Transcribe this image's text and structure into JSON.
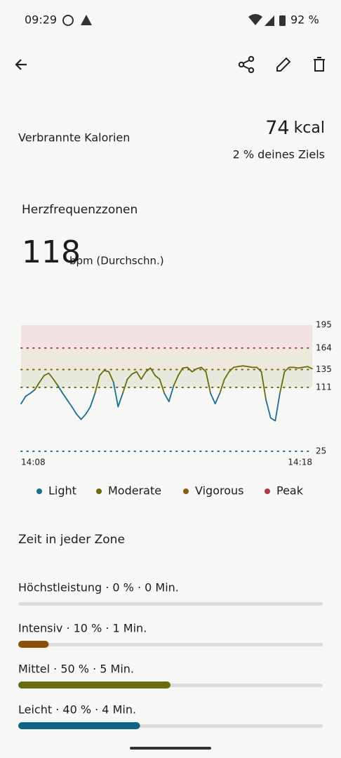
{
  "status_bar": {
    "time": "09:29",
    "battery": "92 %"
  },
  "calories": {
    "label": "Verbrannte Kalorien",
    "value": "74",
    "unit": "kcal",
    "goal": "2 % deines Ziels"
  },
  "heart_rate": {
    "title": "Herzfrequenzzonen",
    "average": 118,
    "unit": "bpm (Durchschn.)"
  },
  "chart_data": {
    "type": "line",
    "values": [
      89,
      99,
      103,
      108,
      118,
      127,
      130,
      122,
      113,
      103,
      94,
      85,
      75,
      68,
      75,
      85,
      103,
      127,
      134,
      132,
      118,
      85,
      103,
      122,
      129,
      132,
      122,
      132,
      137,
      127,
      122,
      103,
      92,
      113,
      127,
      137,
      138,
      132,
      136,
      138,
      132,
      103,
      89,
      103,
      122,
      132,
      138,
      139,
      140,
      139,
      138,
      138,
      132,
      94,
      70,
      66,
      103,
      132,
      138,
      138,
      137,
      138,
      139,
      136
    ],
    "x_labels": [
      "14:08",
      "14:18"
    ],
    "ylim": [
      25,
      195
    ],
    "yticks": [
      25,
      111,
      135,
      164,
      195
    ],
    "tick_line_colors": [
      "#1a6e91",
      "#6b6a10",
      "#8a5a10",
      "#b03a4a",
      null
    ],
    "band_colors": [
      null,
      "#e7e9dc",
      "#ede9dd",
      "#f1e3e3"
    ],
    "line_colors": [
      "#1a6e91",
      "#6b6a10"
    ],
    "legend": [
      {
        "name": "Light",
        "color": "#1a6e91"
      },
      {
        "name": "Moderate",
        "color": "#6b6a10"
      },
      {
        "name": "Vigorous",
        "color": "#8a5a10"
      },
      {
        "name": "Peak",
        "color": "#b03a4a"
      }
    ]
  },
  "zones": {
    "title": "Zeit in jeder Zone",
    "items": [
      {
        "label": "Höchstleistung · 0 % · 0 Min.",
        "percent": 0,
        "color": "#b03a4a"
      },
      {
        "label": "Intensiv · 10 % · 1 Min.",
        "percent": 10,
        "color": "#8a5106"
      },
      {
        "label": "Mittel · 50 % · 5 Min.",
        "percent": 50,
        "color": "#6b6a10"
      },
      {
        "label": "Leicht · 40 % · 4 Min.",
        "percent": 40,
        "color": "#0f6587"
      }
    ]
  }
}
